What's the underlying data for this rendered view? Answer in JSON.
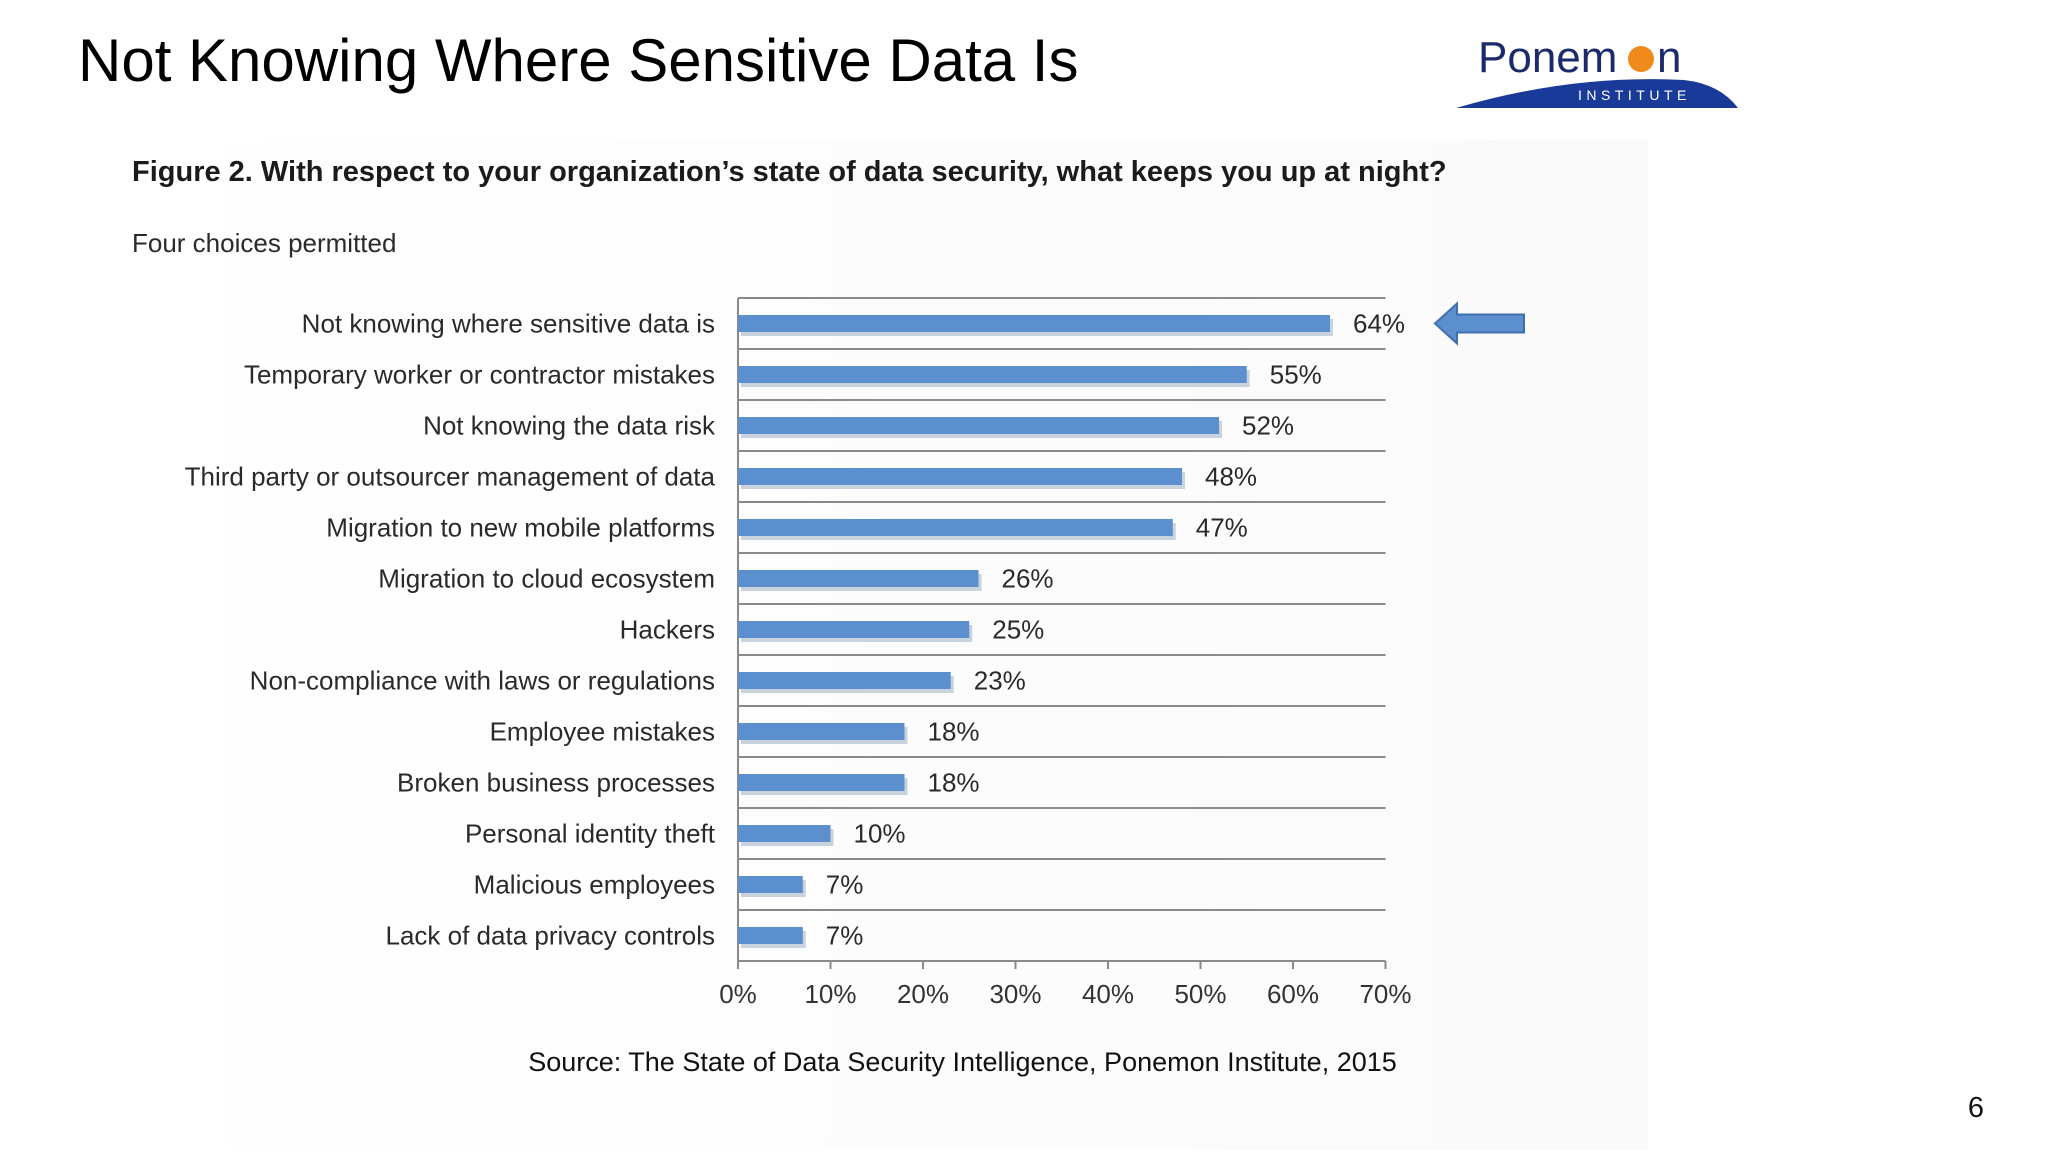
{
  "slide": {
    "title": "Not Knowing Where Sensitive Data Is",
    "source": "Source: The State of Data Security Intelligence, Ponemon Institute, 2015",
    "page_number": "6"
  },
  "logo": {
    "name": "Ponemon",
    "subtitle": "INSTITUTE",
    "colors": {
      "text": "#1c2a6b",
      "swoosh": "#1a3a9a",
      "dot": "#f08a1c"
    }
  },
  "colors": {
    "bar": "#5b8fcd",
    "bar_shadow": "#c9d3dd",
    "grid": "#8a8a8a",
    "arrow": "#5b8fcd"
  },
  "chart_data": {
    "type": "bar",
    "orientation": "horizontal",
    "title": "Figure 2. With respect to your organization’s state of data security, what keeps you up at night?",
    "subtitle": "Four choices permitted",
    "categories": [
      "Not knowing where sensitive data is",
      "Temporary worker or contractor mistakes",
      "Not knowing the data risk",
      "Third party or outsourcer management of data",
      "Migration to new mobile platforms",
      "Migration to cloud ecosystem",
      "Hackers",
      "Non-compliance with laws or regulations",
      "Employee mistakes",
      "Broken business processes",
      "Personal identity theft",
      "Malicious employees",
      "Lack of data privacy controls"
    ],
    "values": [
      64,
      55,
      52,
      48,
      47,
      26,
      25,
      23,
      18,
      18,
      10,
      7,
      7
    ],
    "value_labels": [
      "64%",
      "55%",
      "52%",
      "48%",
      "47%",
      "26%",
      "25%",
      "23%",
      "18%",
      "18%",
      "10%",
      "7%",
      "7%"
    ],
    "xlim": [
      0,
      70
    ],
    "x_ticks": [
      "0%",
      "10%",
      "20%",
      "30%",
      "40%",
      "50%",
      "60%",
      "70%"
    ],
    "grid": "horizontal",
    "annotation": "arrow pointing to first bar"
  }
}
